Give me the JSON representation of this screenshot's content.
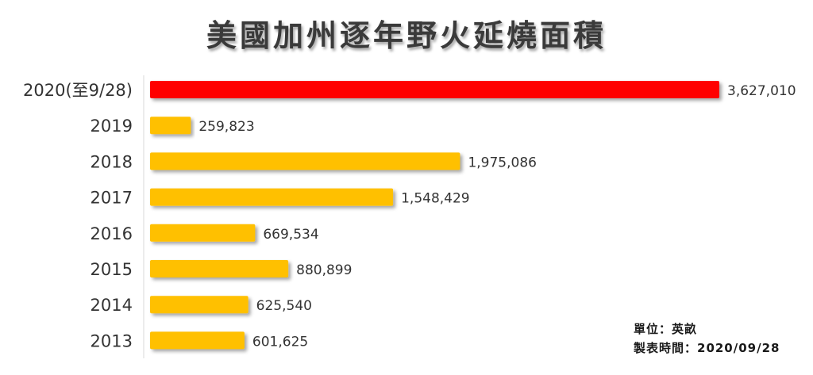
{
  "chart_data": {
    "type": "bar",
    "orientation": "horizontal",
    "title": "美國加州逐年野火延燒面積",
    "categories": [
      "2020(至9/28)",
      "2019",
      "2018",
      "2017",
      "2016",
      "2015",
      "2014",
      "2013"
    ],
    "values": [
      3627010,
      259823,
      1975086,
      1548429,
      669534,
      880899,
      625540,
      601625
    ],
    "value_labels": [
      "3,627,010",
      "259,823",
      "1,975,086",
      "1,548,429",
      "669,534",
      "880,899",
      "625,540",
      "601,625"
    ],
    "colors": [
      "#ff0000",
      "#ffc000",
      "#ffc000",
      "#ffc000",
      "#ffc000",
      "#ffc000",
      "#ffc000",
      "#ffc000"
    ],
    "xlim": [
      0,
      3627010
    ],
    "grid": false,
    "legend": "none",
    "notes": {
      "unit": "單位：英畝",
      "date": "製表時間：2020/09/28"
    }
  }
}
